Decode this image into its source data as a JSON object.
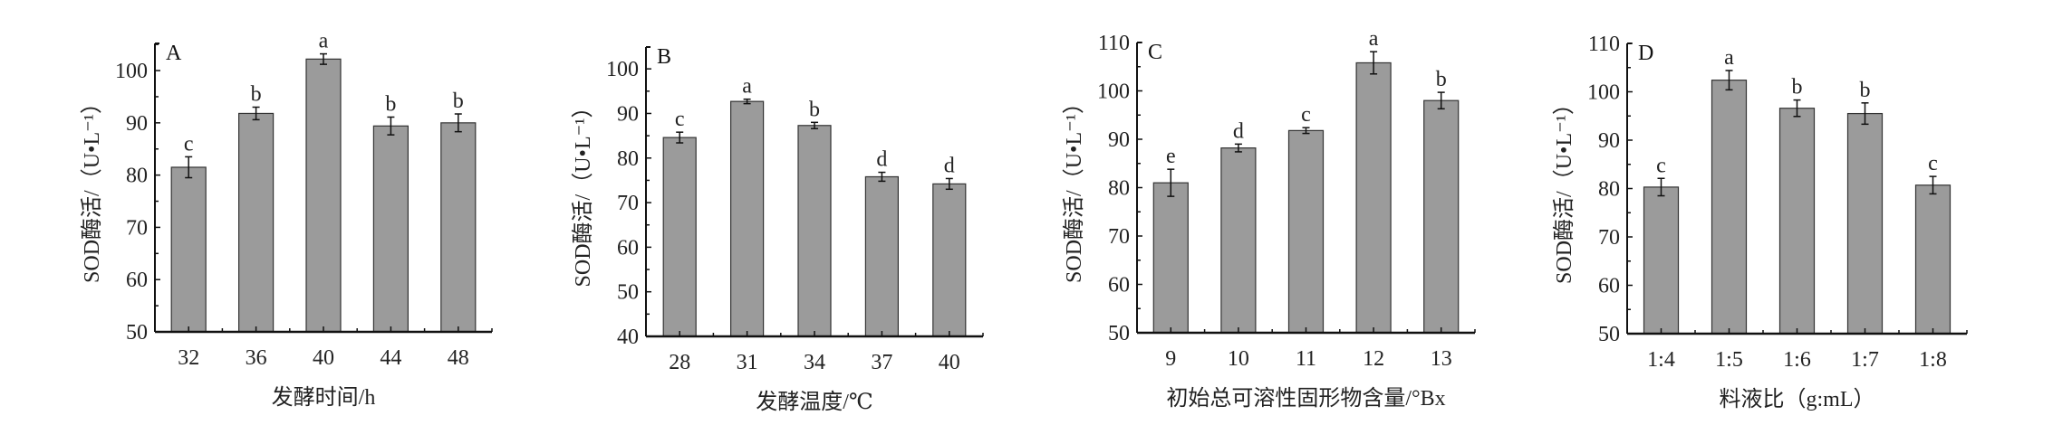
{
  "chart_data": [
    {
      "type": "bar",
      "panel_label": "A",
      "categories": [
        "32",
        "36",
        "40",
        "44",
        "48"
      ],
      "values": [
        81.5,
        91.8,
        102.2,
        89.4,
        90.0
      ],
      "errors": [
        2.0,
        1.2,
        1.0,
        1.7,
        1.7
      ],
      "significance": [
        "c",
        "b",
        "a",
        "b",
        "b"
      ],
      "xlabel": "发酵时间/h",
      "ylabel": "SOD酶活/（U•L⁻¹）",
      "ylim": [
        50,
        105.2
      ],
      "yticks": [
        50,
        60,
        70,
        80,
        90,
        100
      ],
      "bar_color": "#9b9b9b",
      "grid": false
    },
    {
      "type": "bar",
      "panel_label": "B",
      "categories": [
        "28",
        "31",
        "34",
        "37",
        "40"
      ],
      "values": [
        84.6,
        92.7,
        87.3,
        75.8,
        74.2
      ],
      "errors": [
        1.2,
        0.5,
        0.7,
        1.0,
        1.2
      ],
      "significance": [
        "c",
        "a",
        "b",
        "d",
        "d"
      ],
      "xlabel": "发酵温度/℃",
      "ylabel": "SOD酶活/（U•L⁻¹）",
      "ylim": [
        40,
        104.9
      ],
      "yticks": [
        40,
        50,
        60,
        70,
        80,
        90,
        100
      ],
      "bar_color": "#9b9b9b",
      "grid": false
    },
    {
      "type": "bar",
      "panel_label": "C",
      "categories": [
        "9",
        "10",
        "11",
        "12",
        "13"
      ],
      "values": [
        81.0,
        88.2,
        91.8,
        105.8,
        98.0
      ],
      "errors": [
        2.8,
        0.8,
        0.6,
        2.3,
        1.7
      ],
      "significance": [
        "e",
        "d",
        "c",
        "a",
        "b"
      ],
      "xlabel": "初始总可溶性固形物含量/°Bx",
      "ylabel": "SOD酶活/（U•L⁻¹）",
      "ylim": [
        50,
        110
      ],
      "yticks": [
        50,
        60,
        70,
        80,
        90,
        100,
        110
      ],
      "bar_color": "#9b9b9b",
      "grid": false
    },
    {
      "type": "bar",
      "panel_label": "D",
      "categories": [
        "1:4",
        "1:5",
        "1:6",
        "1:7",
        "1:8"
      ],
      "values": [
        80.3,
        102.4,
        96.6,
        95.5,
        80.7
      ],
      "errors": [
        1.8,
        2.0,
        1.7,
        2.2,
        1.8
      ],
      "significance": [
        "c",
        "a",
        "b",
        "b",
        "c"
      ],
      "xlabel": "料液比（g:mL）",
      "ylabel": "SOD酶活/（U•L⁻¹）",
      "ylim": [
        50,
        110
      ],
      "yticks": [
        50,
        60,
        70,
        80,
        90,
        100,
        110
      ],
      "bar_color": "#9b9b9b",
      "grid": false
    }
  ]
}
